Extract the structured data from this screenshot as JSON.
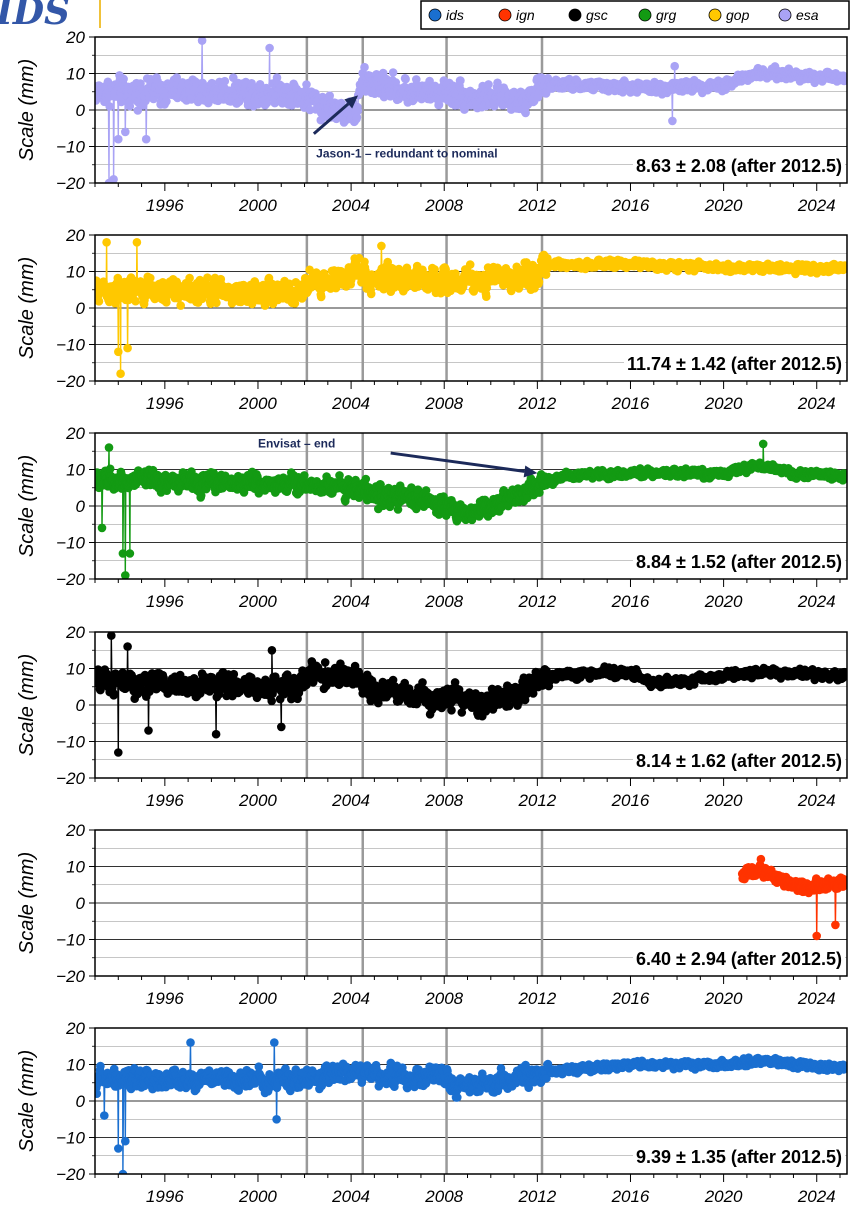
{
  "logo_text": "IDS",
  "legend": [
    {
      "label": "ids",
      "color": "#1a6fd0"
    },
    {
      "label": "ign",
      "color": "#ff3300"
    },
    {
      "label": "gsc",
      "color": "#000000"
    },
    {
      "label": "grg",
      "color": "#139a13"
    },
    {
      "label": "gop",
      "color": "#ffc800"
    },
    {
      "label": "esa",
      "color": "#a9a3f5"
    }
  ],
  "chart_data": [
    {
      "type": "line",
      "series_name": "esa",
      "color": "#a9a3f5",
      "ylabel": "Scale (mm)",
      "ylim": [
        -20,
        20
      ],
      "yticks": [
        20,
        10,
        0,
        -10,
        -20
      ],
      "xlim": [
        1993.0,
        2025.3
      ],
      "xticks": [
        1996,
        2000,
        2004,
        2008,
        2012,
        2016,
        2020,
        2024
      ],
      "event_lines": [
        2002.1,
        2004.5,
        2008.1,
        2012.2
      ],
      "stat_label": "8.63 ± 2.08 (after 2012.5)",
      "annotation": {
        "text": "Jason-1 – redundant to nominal",
        "x": 2002.5,
        "y": -13,
        "arrow_to": [
          2004.3,
          4
        ]
      },
      "data": {
        "start": 1993.0,
        "end": 2025.2,
        "anchors": [
          [
            1993.0,
            5
          ],
          [
            2001.5,
            5
          ],
          [
            2002.5,
            2
          ],
          [
            2004.2,
            -1
          ],
          [
            2004.5,
            8
          ],
          [
            2006.5,
            5
          ],
          [
            2008.2,
            5
          ],
          [
            2009.5,
            3
          ],
          [
            2011.5,
            3
          ],
          [
            2012.3,
            7
          ],
          [
            2017,
            6
          ],
          [
            2020,
            7
          ],
          [
            2021.5,
            10
          ],
          [
            2025.2,
            9
          ]
        ],
        "noise_before": 4.5,
        "noise_after": 2.0,
        "outliers": [
          [
            1993.6,
            -20
          ],
          [
            1993.8,
            -19
          ],
          [
            1994.0,
            -8
          ],
          [
            1994.3,
            -6
          ],
          [
            1995.2,
            -8
          ],
          [
            1997.6,
            19
          ],
          [
            2000.5,
            17
          ],
          [
            2017.8,
            -3
          ],
          [
            2017.9,
            12
          ]
        ]
      }
    },
    {
      "type": "line",
      "series_name": "gop",
      "color": "#ffc800",
      "ylabel": "Scale (mm)",
      "ylim": [
        -20,
        20
      ],
      "yticks": [
        20,
        10,
        0,
        -10,
        -20
      ],
      "xlim": [
        1993.0,
        2025.3
      ],
      "xticks": [
        1996,
        2000,
        2004,
        2008,
        2012,
        2016,
        2020,
        2024
      ],
      "event_lines": [
        2002.1,
        2004.5,
        2008.1,
        2012.2
      ],
      "stat_label": "11.74 ± 1.42 (after 2012.5)",
      "data": {
        "start": 1993.0,
        "end": 2025.2,
        "anchors": [
          [
            1993.0,
            5
          ],
          [
            2001.8,
            4
          ],
          [
            2002.2,
            6
          ],
          [
            2004.4,
            10
          ],
          [
            2004.6,
            8
          ],
          [
            2008.0,
            8
          ],
          [
            2008.3,
            7
          ],
          [
            2012.0,
            9
          ],
          [
            2012.4,
            12
          ],
          [
            2016,
            12
          ],
          [
            2020,
            11
          ],
          [
            2025.2,
            11
          ]
        ],
        "noise_before": 4.5,
        "noise_after": 1.4,
        "outliers": [
          [
            1993.5,
            18
          ],
          [
            1994.0,
            -12
          ],
          [
            1994.1,
            -18
          ],
          [
            1994.4,
            -11
          ],
          [
            1994.8,
            18
          ],
          [
            2005.3,
            17
          ]
        ]
      }
    },
    {
      "type": "line",
      "series_name": "grg",
      "color": "#139a13",
      "ylabel": "Scale (mm)",
      "ylim": [
        -20,
        20
      ],
      "yticks": [
        20,
        10,
        0,
        -10,
        -20
      ],
      "xlim": [
        1993.0,
        2025.3
      ],
      "xticks": [
        1996,
        2000,
        2004,
        2008,
        2012,
        2016,
        2020,
        2024
      ],
      "event_lines": [
        2002.1,
        2004.5,
        2008.1,
        2012.2
      ],
      "stat_label": "8.84 ± 1.52 (after 2012.5)",
      "annotation": {
        "text": "Envisat – end",
        "x": 2000.0,
        "y": 16,
        "arrow_to": [
          2012.0,
          9
        ]
      },
      "data": {
        "start": 1993.0,
        "end": 2025.2,
        "anchors": [
          [
            1993.0,
            7
          ],
          [
            2002.0,
            6
          ],
          [
            2004.4,
            5
          ],
          [
            2005.0,
            3
          ],
          [
            2006.5,
            2
          ],
          [
            2008.0,
            0
          ],
          [
            2009.3,
            -2
          ],
          [
            2011.0,
            3
          ],
          [
            2012.2,
            6
          ],
          [
            2013.0,
            8
          ],
          [
            2017,
            9
          ],
          [
            2020,
            9
          ],
          [
            2021.5,
            11
          ],
          [
            2023,
            9
          ],
          [
            2025.2,
            8
          ]
        ],
        "noise_before": 3.5,
        "noise_after": 1.5,
        "outliers": [
          [
            1993.3,
            -6
          ],
          [
            1993.6,
            16
          ],
          [
            1994.2,
            -13
          ],
          [
            1994.3,
            -19
          ],
          [
            1994.5,
            -13
          ],
          [
            2021.7,
            17
          ]
        ]
      }
    },
    {
      "type": "line",
      "series_name": "gsc",
      "color": "#000000",
      "ylabel": "Scale (mm)",
      "ylim": [
        -20,
        20
      ],
      "yticks": [
        20,
        10,
        0,
        -10,
        -20
      ],
      "xlim": [
        1993.0,
        2025.3
      ],
      "xticks": [
        1996,
        2000,
        2004,
        2008,
        2012,
        2016,
        2020,
        2024
      ],
      "event_lines": [
        2002.1,
        2004.5,
        2008.1,
        2012.2
      ],
      "stat_label": "8.14 ± 1.62 (after 2012.5)",
      "data": {
        "start": 1993.0,
        "end": 2025.2,
        "anchors": [
          [
            1993.0,
            6
          ],
          [
            2001.8,
            5
          ],
          [
            2002.2,
            9
          ],
          [
            2004.4,
            7
          ],
          [
            2004.6,
            4
          ],
          [
            2008.0,
            2
          ],
          [
            2009.5,
            0
          ],
          [
            2011.5,
            4
          ],
          [
            2012.3,
            8
          ],
          [
            2016,
            9
          ],
          [
            2017,
            6
          ],
          [
            2019,
            7
          ],
          [
            2021,
            9
          ],
          [
            2025.2,
            8
          ]
        ],
        "noise_before": 4.0,
        "noise_after": 1.6,
        "outliers": [
          [
            1993.7,
            19
          ],
          [
            1994.0,
            -13
          ],
          [
            1994.4,
            16
          ],
          [
            1995.3,
            -7
          ],
          [
            1998.2,
            -8
          ],
          [
            2000.6,
            15
          ],
          [
            2001.0,
            -6
          ]
        ]
      }
    },
    {
      "type": "line",
      "series_name": "ign",
      "color": "#ff3300",
      "ylabel": "Scale (mm)",
      "ylim": [
        -20,
        20
      ],
      "yticks": [
        20,
        10,
        0,
        -10,
        -20
      ],
      "xlim": [
        1993.0,
        2025.3
      ],
      "xticks": [
        1996,
        2000,
        2004,
        2008,
        2012,
        2016,
        2020,
        2024
      ],
      "event_lines": [
        2002.1,
        2004.5,
        2008.1,
        2012.2
      ],
      "stat_label": "6.40 ± 2.94 (after 2012.5)",
      "data": {
        "start": 2020.8,
        "end": 2025.2,
        "anchors": [
          [
            2020.8,
            8
          ],
          [
            2022.0,
            8
          ],
          [
            2023.0,
            5
          ],
          [
            2024.0,
            4
          ],
          [
            2025.2,
            6
          ]
        ],
        "noise_before": 2.5,
        "noise_after": 2.5,
        "outliers": [
          [
            2024.0,
            -9
          ],
          [
            2024.8,
            -6
          ],
          [
            2021.6,
            12
          ]
        ]
      }
    },
    {
      "type": "line",
      "series_name": "ids",
      "color": "#1a6fd0",
      "ylabel": "Scale (mm)",
      "ylim": [
        -20,
        20
      ],
      "yticks": [
        20,
        10,
        0,
        -10,
        -20
      ],
      "xlim": [
        1993.0,
        2025.3
      ],
      "xticks": [
        1996,
        2000,
        2004,
        2008,
        2012,
        2016,
        2020,
        2024
      ],
      "event_lines": [
        2002.1,
        2004.5,
        2008.1,
        2012.2
      ],
      "stat_label": "9.39 ± 1.35 (after 2012.5)",
      "data": {
        "start": 1993.0,
        "end": 2025.2,
        "anchors": [
          [
            1993.0,
            6
          ],
          [
            2002.0,
            6
          ],
          [
            2004.4,
            8
          ],
          [
            2006.5,
            6
          ],
          [
            2008.0,
            7
          ],
          [
            2008.3,
            4
          ],
          [
            2011.5,
            6
          ],
          [
            2012.3,
            8
          ],
          [
            2016,
            10
          ],
          [
            2020,
            10
          ],
          [
            2021.5,
            11
          ],
          [
            2025.2,
            9
          ]
        ],
        "noise_before": 3.5,
        "noise_after": 1.3,
        "outliers": [
          [
            1993.4,
            -4
          ],
          [
            1994.0,
            -13
          ],
          [
            1994.3,
            -11
          ],
          [
            1994.2,
            -20
          ],
          [
            1997.1,
            16
          ],
          [
            2000.7,
            16
          ],
          [
            2000.8,
            -5
          ]
        ]
      }
    }
  ]
}
